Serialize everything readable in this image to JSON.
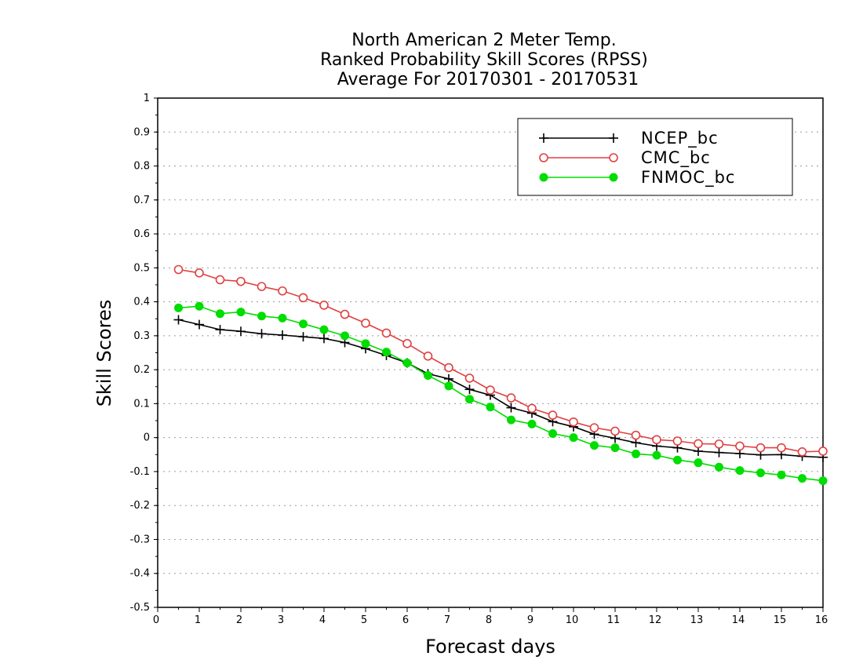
{
  "chart_data": {
    "type": "line",
    "title": [
      "North American 2 Meter Temp.",
      "Ranked Probability Skill Scores (RPSS)",
      "Average For 20170301 - 20170531"
    ],
    "xlabel": "Forecast days",
    "ylabel": "Skill Scores",
    "xlim": [
      0,
      16
    ],
    "ylim": [
      -0.5,
      1
    ],
    "xticks": [
      "0",
      "1",
      "2",
      "3",
      "4",
      "5",
      "6",
      "7",
      "8",
      "9",
      "10",
      "11",
      "12",
      "13",
      "14",
      "15",
      "16"
    ],
    "yticks": [
      "1",
      "0.9",
      "0.8",
      "0.7",
      "0.6",
      "0.5",
      "0.4",
      "0.3",
      "0.2",
      "0.1",
      "0",
      "-0.1",
      "-0.2",
      "-0.3",
      "-0.4",
      "-0.5"
    ],
    "grid": true,
    "legend_position": "top-right",
    "x": [
      0.5,
      1,
      1.5,
      2,
      2.5,
      3,
      3.5,
      4,
      4.5,
      5,
      5.5,
      6,
      6.5,
      7,
      7.5,
      8,
      8.5,
      9,
      9.5,
      10,
      10.5,
      11,
      11.5,
      12,
      12.5,
      13,
      13.5,
      14,
      14.5,
      15,
      15.5,
      16
    ],
    "series": [
      {
        "name": "NCEP_bc",
        "color": "#000000",
        "marker": "plus",
        "values": [
          0.347,
          0.333,
          0.318,
          0.313,
          0.306,
          0.302,
          0.297,
          0.292,
          0.28,
          0.262,
          0.242,
          0.22,
          0.188,
          0.173,
          0.142,
          0.125,
          0.088,
          0.072,
          0.047,
          0.032,
          0.01,
          -0.002,
          -0.015,
          -0.025,
          -0.03,
          -0.04,
          -0.044,
          -0.047,
          -0.051,
          -0.05,
          -0.055,
          -0.058
        ]
      },
      {
        "name": "CMC_bc",
        "color": "#e04040",
        "marker": "open-circle",
        "values": [
          0.495,
          0.485,
          0.465,
          0.46,
          0.445,
          0.432,
          0.412,
          0.39,
          0.363,
          0.337,
          0.308,
          0.277,
          0.24,
          0.206,
          0.175,
          0.14,
          0.117,
          0.086,
          0.066,
          0.046,
          0.029,
          0.019,
          0.007,
          -0.006,
          -0.01,
          -0.018,
          -0.019,
          -0.025,
          -0.03,
          -0.03,
          -0.042,
          -0.04
        ]
      },
      {
        "name": "FNMOC_bc",
        "color": "#00dd00",
        "marker": "filled-circle",
        "values": [
          0.382,
          0.387,
          0.365,
          0.37,
          0.358,
          0.352,
          0.335,
          0.318,
          0.3,
          0.277,
          0.252,
          0.22,
          0.183,
          0.152,
          0.113,
          0.09,
          0.052,
          0.04,
          0.012,
          0.0,
          -0.023,
          -0.03,
          -0.048,
          -0.052,
          -0.066,
          -0.074,
          -0.087,
          -0.097,
          -0.104,
          -0.11,
          -0.12,
          -0.127
        ]
      }
    ]
  }
}
